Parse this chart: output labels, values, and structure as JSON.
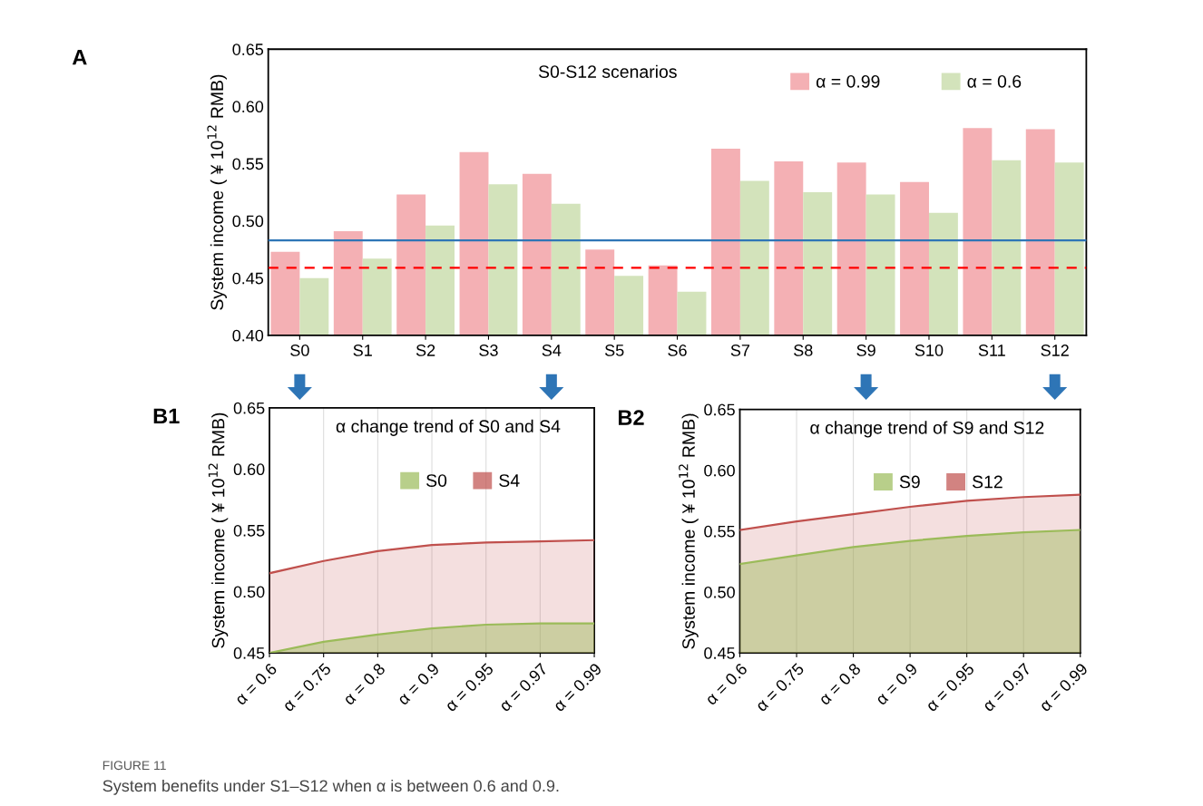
{
  "chart_data": [
    {
      "type": "bar",
      "title": "S0-S12 scenarios",
      "ylabel": "System income ( ¥ 10$^{12}$ RMB)",
      "categories": [
        "S0",
        "S1",
        "S2",
        "S3",
        "S4",
        "S5",
        "S6",
        "S7",
        "S8",
        "S9",
        "S10",
        "S11",
        "S12"
      ],
      "series": [
        {
          "name": "α = 0.99",
          "color": "#f4b0b4",
          "values": [
            0.473,
            0.491,
            0.523,
            0.56,
            0.541,
            0.475,
            0.461,
            0.563,
            0.552,
            0.551,
            0.534,
            0.581,
            0.58
          ]
        },
        {
          "name": "α = 0.6",
          "color": "#d3e3bb",
          "values": [
            0.45,
            0.467,
            0.496,
            0.532,
            0.515,
            0.452,
            0.438,
            0.535,
            0.525,
            0.523,
            0.507,
            0.553,
            0.551
          ]
        }
      ],
      "ylim": [
        0.4,
        0.65
      ],
      "yticks": [
        {
          "value": 0.4,
          "label": "0.40"
        },
        0.45,
        {
          "value": 0.5,
          "label": "0.50"
        },
        0.55,
        {
          "value": 0.6,
          "label": "0.60"
        },
        0.65
      ],
      "ref_lines": [
        {
          "axis": "y",
          "value": 0.483,
          "color": "#2e75b6",
          "line_style": "solid"
        },
        {
          "axis": "y",
          "value": 0.459,
          "color": "#ff0000",
          "line_style": "dashed"
        }
      ],
      "legend": "top",
      "grid": false,
      "annotations": [
        "A",
        "FIGURE 11",
        "System benefits under S1–S12 when α is between 0.6 and 0.9."
      ]
    },
    {
      "type": "area",
      "title": "α change trend of S0 and S4",
      "ylabel": "System income ( ¥ 10$^{12}$ RMB)",
      "categories": [
        "α = 0.6",
        "α = 0.75",
        "α = 0.8",
        "α = 0.9",
        "α = 0.95",
        "α = 0.97",
        "α = 0.99"
      ],
      "series": [
        {
          "name": "S0",
          "color": "#9bbb59",
          "values": [
            0.45,
            0.459,
            0.465,
            0.47,
            0.473,
            0.474,
            0.474
          ]
        },
        {
          "name": "S4",
          "color": "#c0504d",
          "values": [
            0.515,
            0.525,
            0.533,
            0.538,
            0.54,
            0.541,
            0.542
          ]
        }
      ],
      "ylim": [
        0.45,
        0.65
      ],
      "yticks": [
        0.45,
        {
          "value": 0.5,
          "label": "0.50"
        },
        0.55,
        {
          "value": 0.6,
          "label": "0.60"
        },
        0.65
      ],
      "legend": "top right",
      "grid": "x",
      "annotations": [
        "B1"
      ]
    },
    {
      "type": "area",
      "title": "α change trend of S9 and S12",
      "ylabel": "System income ( ¥ 10$^{12}$ RMB)",
      "categories": [
        "α = 0.6",
        "α = 0.75",
        "α = 0.8",
        "α = 0.9",
        "α = 0.95",
        "α = 0.97",
        "α = 0.99"
      ],
      "series": [
        {
          "name": "S9",
          "color": "#9bbb59",
          "values": [
            0.523,
            0.53,
            0.537,
            0.542,
            0.546,
            0.549,
            0.551
          ]
        },
        {
          "name": "S12",
          "color": "#c0504d",
          "values": [
            0.551,
            0.558,
            0.564,
            0.57,
            0.575,
            0.578,
            0.58
          ]
        }
      ],
      "ylim": [
        0.45,
        0.65
      ],
      "yticks": [
        0.45,
        {
          "value": 0.5,
          "label": "0.50"
        },
        0.55,
        {
          "value": 0.6,
          "label": "0.60"
        },
        0.65
      ],
      "legend": "top right",
      "grid": "x",
      "annotations": [
        "B2"
      ]
    }
  ]
}
